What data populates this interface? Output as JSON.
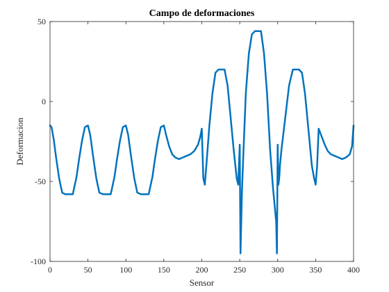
{
  "chart_data": {
    "type": "line",
    "title": "Campo de deformaciones",
    "xlabel": "Sensor",
    "ylabel": "Deformacion",
    "xlim": [
      0,
      400
    ],
    "ylim": [
      -100,
      50
    ],
    "xticks": [
      0,
      50,
      100,
      150,
      200,
      250,
      300,
      350,
      400
    ],
    "yticks": [
      -100,
      -50,
      0,
      50
    ],
    "grid": false,
    "line_color": "#0072BD",
    "series": [
      {
        "x": [
          0,
          2,
          5,
          8,
          12,
          16,
          20,
          25,
          30,
          35,
          38,
          42,
          46,
          50,
          53,
          57,
          61,
          65,
          70,
          75,
          80,
          85,
          88,
          92,
          96,
          100,
          103,
          107,
          111,
          115,
          120,
          125,
          130,
          135,
          138,
          142,
          146,
          150,
          153,
          157,
          161,
          165,
          170,
          175,
          180,
          185,
          190,
          195,
          198,
          200,
          202,
          204,
          206,
          210,
          214,
          218,
          222,
          226,
          230,
          234,
          238,
          242,
          246,
          248,
          250,
          251,
          252,
          253,
          255,
          258,
          262,
          266,
          270,
          274,
          278,
          282,
          286,
          290,
          294,
          298,
          299,
          300,
          301,
          302,
          303,
          305,
          310,
          315,
          320,
          324,
          328,
          332,
          336,
          340,
          345,
          348,
          350,
          352,
          354,
          358,
          362,
          366,
          370,
          375,
          380,
          385,
          390,
          395,
          398,
          400
        ],
        "y": [
          -15,
          -16,
          -24,
          -35,
          -48,
          -57,
          -58,
          -58,
          -58,
          -47,
          -37,
          -25,
          -16,
          -15,
          -21,
          -35,
          -48,
          -57,
          -58,
          -58,
          -58,
          -47,
          -37,
          -25,
          -16,
          -15,
          -21,
          -35,
          -48,
          -57,
          -58,
          -58,
          -58,
          -47,
          -37,
          -25,
          -16,
          -15,
          -21,
          -28,
          -33,
          -35,
          -36,
          -35,
          -34,
          -33,
          -31,
          -27,
          -22,
          -17,
          -48,
          -52,
          -40,
          -15,
          5,
          18,
          20,
          20,
          20,
          10,
          -10,
          -30,
          -48,
          -52,
          -27,
          -95,
          -75,
          -55,
          -30,
          5,
          30,
          42,
          44,
          44,
          44,
          30,
          5,
          -30,
          -55,
          -75,
          -95,
          -27,
          -52,
          -48,
          -40,
          -30,
          -10,
          10,
          20,
          20,
          20,
          18,
          5,
          -15,
          -40,
          -48,
          -52,
          -40,
          -17,
          -22,
          -27,
          -31,
          -33,
          -34,
          -35,
          -36,
          -35,
          -33,
          -28,
          -15
        ]
      }
    ]
  }
}
